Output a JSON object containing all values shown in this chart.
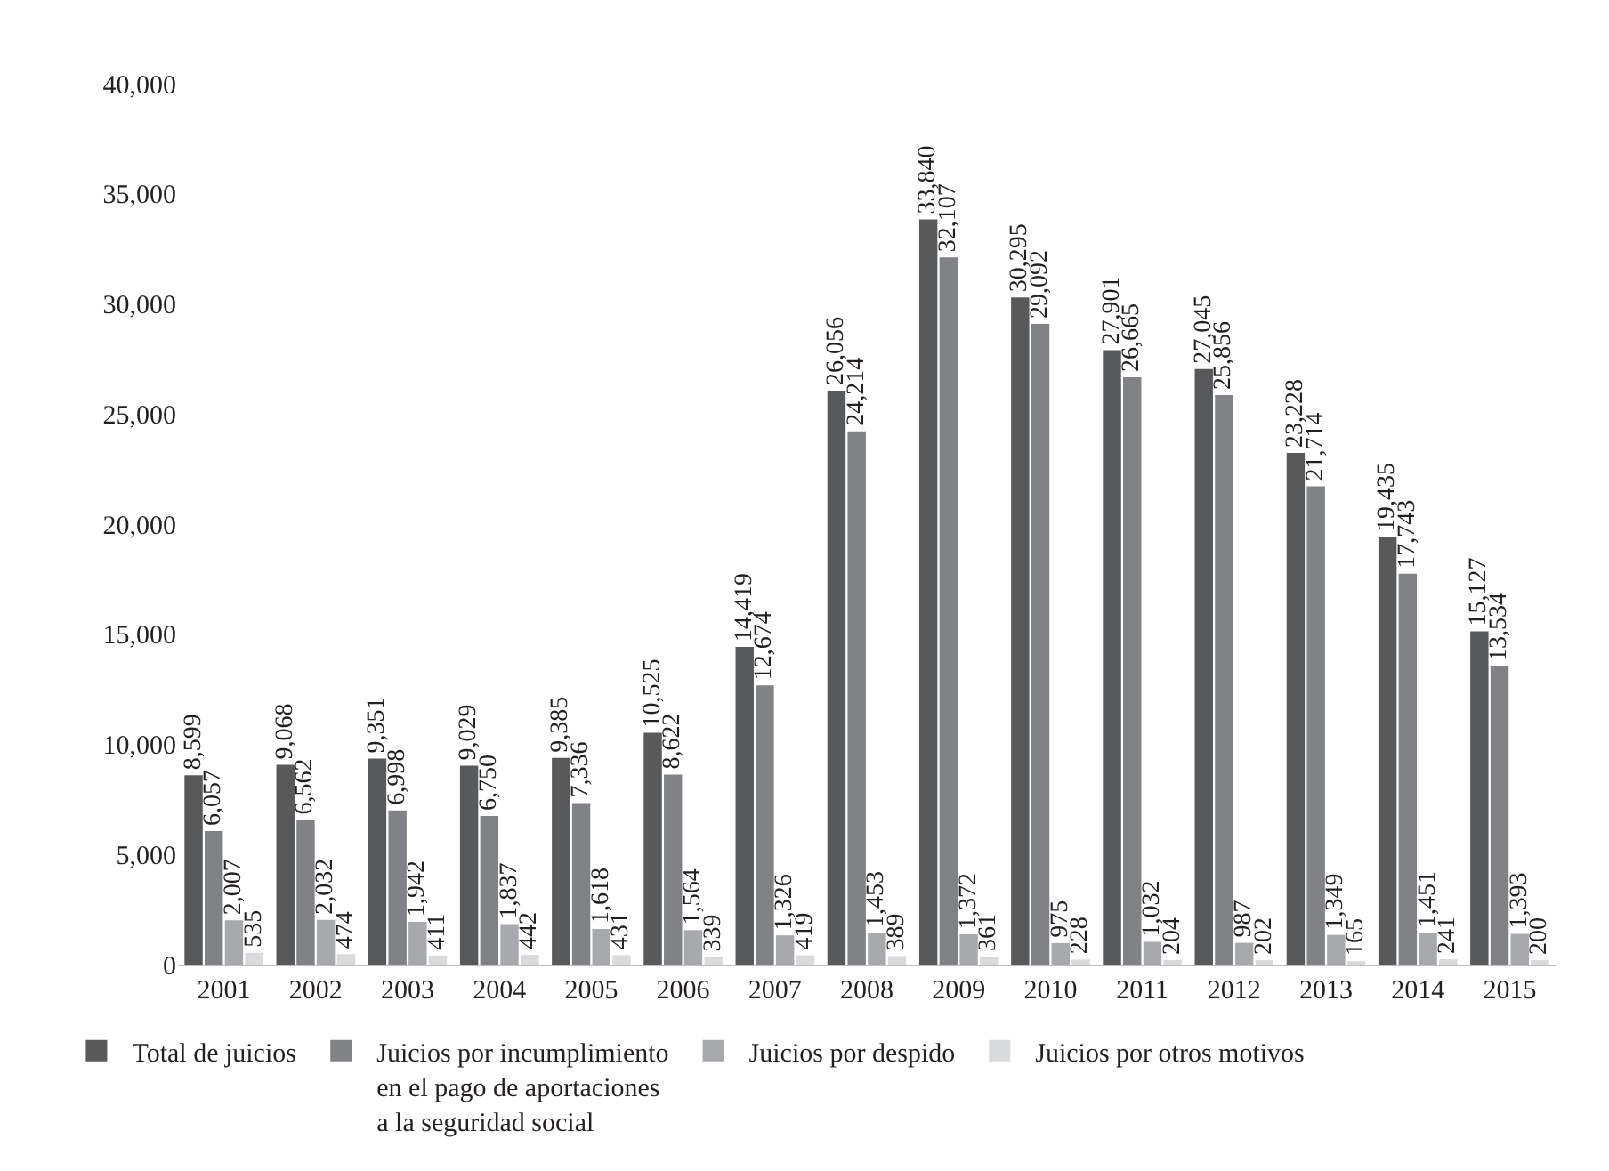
{
  "chart_data": {
    "type": "bar",
    "categories": [
      "2001",
      "2002",
      "2003",
      "2004",
      "2005",
      "2006",
      "2007",
      "2008",
      "2009",
      "2010",
      "2011",
      "2012",
      "2013",
      "2014",
      "2015"
    ],
    "series": [
      {
        "name": "Total de juicios",
        "color": "#58595b",
        "values": [
          8599,
          9068,
          9351,
          9029,
          9385,
          10525,
          14419,
          26056,
          33840,
          30295,
          27901,
          27045,
          23228,
          19435,
          15127
        ],
        "value_labels": [
          "8,599",
          "9,068",
          "9,351",
          "9,029",
          "9,385",
          "10,525",
          "14,419",
          "26,056",
          "33,840",
          "30,295",
          "27,901",
          "27,045",
          "23,228",
          "19,435",
          "15,127"
        ]
      },
      {
        "name": "Juicios por incumplimiento en el pago de aportaciones a la seguridad social",
        "color": "#808285",
        "values": [
          6057,
          6562,
          6998,
          6750,
          7336,
          8622,
          12674,
          24214,
          32107,
          29092,
          26665,
          25856,
          21714,
          17743,
          13534
        ],
        "value_labels": [
          "6,057",
          "6,562",
          "6,998",
          "6,750",
          "7,336",
          "8,622",
          "12,674",
          "24,214",
          "32,107",
          "29,092",
          "26,665",
          "25,856",
          "21,714",
          "17,743",
          "13,534"
        ]
      },
      {
        "name": "Juicios por despido",
        "color": "#a7a9ac",
        "values": [
          2007,
          2032,
          1942,
          1837,
          1618,
          1564,
          1326,
          1453,
          1372,
          975,
          1032,
          987,
          1349,
          1451,
          1393
        ],
        "value_labels": [
          "2,007",
          "2,032",
          "1,942",
          "1,837",
          "1,618",
          "1,564",
          "1,326",
          "1,453",
          "1,372",
          "975",
          "1,032",
          "987",
          "1,349",
          "1,451",
          "1,393"
        ]
      },
      {
        "name": "Juicios por otros motivos",
        "color": "#d9dadb",
        "values": [
          535,
          474,
          411,
          442,
          431,
          339,
          419,
          389,
          361,
          228,
          204,
          202,
          165,
          241,
          200
        ],
        "value_labels": [
          "535",
          "474",
          "411",
          "442",
          "431",
          "339",
          "419",
          "389",
          "361",
          "228",
          "204",
          "202",
          "165",
          "241",
          "200"
        ]
      }
    ],
    "ylim": [
      0,
      40000
    ],
    "yticks": [
      0,
      {
        "value": 5000,
        "label": "5,000"
      },
      {
        "value": 10000,
        "label": "10,000"
      },
      {
        "value": 15000,
        "label": "15,000"
      },
      {
        "value": 20000,
        "label": "20,000"
      },
      {
        "value": 25000,
        "label": "25,000"
      },
      {
        "value": 30000,
        "label": "30,000"
      },
      {
        "value": 35000,
        "label": "35,000"
      },
      {
        "value": 40000,
        "label": "40,000"
      }
    ],
    "grid": false,
    "legend": "bottom"
  }
}
